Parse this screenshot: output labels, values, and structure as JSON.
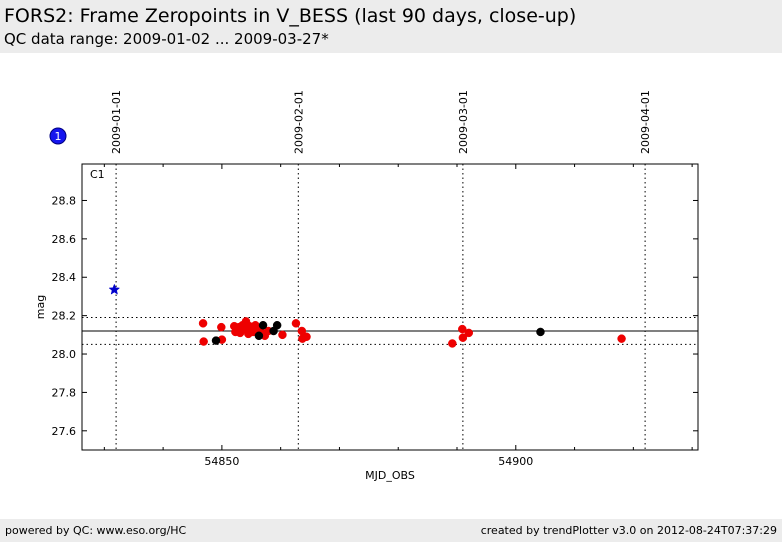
{
  "header": {
    "title": "FORS2: Frame Zeropoints in V_BESS (last 90 days, close-up)",
    "subtitle": "QC data range: 2009-01-02 ... 2009-03-27*"
  },
  "footer": {
    "left": "powered by QC: www.eso.org/HC",
    "right": "created by trendPlotter v3.0 on 2012-08-24T07:37:29"
  },
  "chart_data": {
    "type": "scatter",
    "panel_label": "C1",
    "badge": "1",
    "xlabel": "MJD_OBS",
    "ylabel": "mag",
    "xlim": [
      54826.2,
      54931
    ],
    "ylim": [
      27.5,
      28.99
    ],
    "x_ticks": [
      54850,
      54900
    ],
    "y_ticks": [
      27.6,
      27.8,
      28.0,
      28.2,
      28.4,
      28.6,
      28.8
    ],
    "top_date_labels": [
      {
        "label": "2009-01-01",
        "mjd": 54832
      },
      {
        "label": "2009-02-01",
        "mjd": 54863
      },
      {
        "label": "2009-03-01",
        "mjd": 54891
      },
      {
        "label": "2009-04-01",
        "mjd": 54922
      }
    ],
    "reference_line": 28.12,
    "band_lines": [
      28.05,
      28.19
    ],
    "colors": {
      "red": "#ee0000",
      "black": "#000000",
      "blue": "#0000cc",
      "ref_line": "#000000",
      "band": "#000000"
    },
    "series": [
      {
        "color": "red",
        "x": [
          54846.8,
          54846.9,
          54849.9,
          54850.0,
          54852.1,
          54852.3,
          54852.9,
          54853.1,
          54853.5,
          54853.8,
          54854.1,
          54854.3,
          54854.5,
          54854.7,
          54855.0,
          54855.3,
          54855.7,
          54856.2,
          54856.8,
          54857.3,
          54857.9,
          54860.3,
          54862.6,
          54863.6,
          54863.7,
          54864.4,
          54889.2,
          54890.9,
          54891.0,
          54892.0,
          54918.0
        ],
        "y": [
          28.16,
          28.065,
          28.14,
          28.075,
          28.145,
          28.115,
          28.14,
          28.11,
          28.15,
          28.13,
          28.17,
          28.13,
          28.105,
          28.145,
          28.14,
          28.115,
          28.15,
          28.125,
          28.11,
          28.095,
          28.12,
          28.1,
          28.16,
          28.12,
          28.08,
          28.09,
          28.055,
          28.13,
          28.085,
          28.11,
          28.08
        ]
      },
      {
        "color": "black",
        "x": [
          54849.0,
          54856.3,
          54857.0,
          54858.8,
          54859.4,
          54904.2
        ],
        "y": [
          28.07,
          28.095,
          28.15,
          28.12,
          28.15,
          28.115
        ]
      },
      {
        "color": "blue",
        "marker": "star",
        "x": [
          54831.7
        ],
        "y": [
          28.335
        ]
      }
    ]
  }
}
